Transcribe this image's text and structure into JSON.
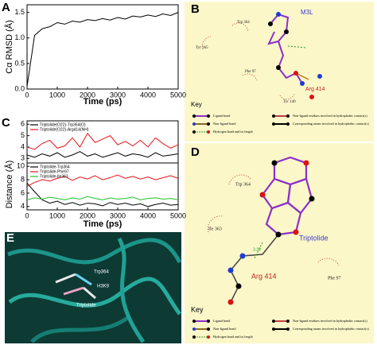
{
  "panel_labels": [
    "A",
    "B",
    "C",
    "D",
    "E"
  ],
  "chart_data": [
    {
      "type": "line",
      "ylabel": "Cα RMSD (Å)",
      "xlabel": "Time (ps)",
      "x": [
        0,
        250,
        500,
        750,
        1000,
        1250,
        1500,
        1750,
        2000,
        2250,
        2500,
        2750,
        3000,
        3250,
        3500,
        3750,
        4000,
        4250,
        4500,
        4750,
        5000
      ],
      "xlim": [
        0,
        5000
      ],
      "ylim": [
        0,
        1.65
      ],
      "xticks": [
        0,
        1000,
        2000,
        3000,
        4000,
        5000
      ],
      "yticks": [
        {
          "value": 0,
          "label": "0.0"
        },
        {
          "value": 0.5,
          "label": "0.5"
        },
        {
          "value": 1,
          "label": "1.0"
        },
        {
          "value": 1.5,
          "label": "1.5"
        }
      ],
      "series": [
        {
          "color": "#000000",
          "values": [
            0.05,
            1.05,
            1.18,
            1.22,
            1.3,
            1.27,
            1.33,
            1.31,
            1.36,
            1.34,
            1.38,
            1.35,
            1.4,
            1.37,
            1.43,
            1.41,
            1.45,
            1.42,
            1.47,
            1.44,
            1.5
          ]
        }
      ]
    },
    {
      "type": "line",
      "ylabel": "Distance (Å)",
      "x": [
        0,
        250,
        500,
        750,
        1000,
        1250,
        1500,
        1750,
        2000,
        2250,
        2500,
        2750,
        3000,
        3250,
        3500,
        3750,
        4000,
        4250,
        4500,
        4750,
        5000
      ],
      "xlim": [
        0,
        5000
      ],
      "ylim": [
        2.6,
        6.3
      ],
      "yticks": [
        3,
        4,
        5,
        6
      ],
      "series": [
        {
          "name": "Triptolide(O22)-Trp364(O)",
          "color": "#000000",
          "values": [
            3.3,
            3.1,
            3.4,
            3.2,
            3.5,
            3.1,
            3.3,
            3.6,
            3.2,
            3.4,
            3.1,
            3.3,
            3.5,
            3.2,
            3.4,
            3.3,
            3.1,
            3.5,
            3.2,
            3.3,
            3.4
          ]
        },
        {
          "name": "Triptolide(O22)-Arg414(NH)",
          "color": "#e8141b",
          "values": [
            4.0,
            3.8,
            4.3,
            4.6,
            3.9,
            4.1,
            4.8,
            4.0,
            5.2,
            4.4,
            4.7,
            5.0,
            4.2,
            4.5,
            4.1,
            4.6,
            4.0,
            4.8,
            4.3,
            3.9,
            4.2
          ]
        }
      ]
    },
    {
      "type": "line",
      "xlabel": "Time (ps)",
      "x": [
        0,
        250,
        500,
        750,
        1000,
        1250,
        1500,
        1750,
        2000,
        2250,
        2500,
        2750,
        3000,
        3250,
        3500,
        3750,
        4000,
        4250,
        4500,
        4750,
        5000
      ],
      "xlim": [
        0,
        5000
      ],
      "ylim": [
        3.5,
        10.5
      ],
      "xticks": [
        0,
        1000,
        2000,
        3000,
        4000,
        5000
      ],
      "yticks": [
        4,
        6,
        8,
        10
      ],
      "series": [
        {
          "name": "Triptolide-Trp364",
          "color": "#000000",
          "values": [
            7.5,
            6.2,
            5.0,
            4.5,
            4.8,
            4.3,
            4.6,
            4.2,
            4.5,
            4.4,
            4.1,
            4.6,
            4.3,
            4.5,
            4.2,
            4.4,
            4.0,
            4.3,
            4.5,
            4.2,
            4.3
          ]
        },
        {
          "name": "Triptolide-Phe97",
          "color": "#e8141b",
          "values": [
            7.0,
            7.6,
            8.0,
            7.8,
            8.2,
            8.5,
            7.9,
            8.4,
            8.1,
            8.6,
            8.0,
            8.3,
            8.7,
            8.2,
            8.5,
            8.1,
            8.4,
            8.0,
            8.3,
            8.6,
            8.2
          ]
        },
        {
          "name": "Triptolide-Ile363",
          "color": "#22c02a",
          "values": [
            5.0,
            5.3,
            5.1,
            5.4,
            5.2,
            5.0,
            5.3,
            5.1,
            5.5,
            5.2,
            5.0,
            5.3,
            5.1,
            5.2,
            5.4,
            5.0,
            5.2,
            5.3,
            5.1,
            5.2,
            5.0
          ]
        }
      ]
    }
  ],
  "diagrams": {
    "B": {
      "ligand": "M3L",
      "residues": [
        "Trp 364",
        "Tyr 365",
        "Phe 97",
        "Arg 414",
        "Tyr 140"
      ],
      "key_title": "Key",
      "key": [
        "Ligand bond",
        "Non-ligand bond",
        "Hydrogen bond and its length",
        "Non-ligand residues involved in hydrophobic contact(s)",
        "Corresponding atoms involved in hydrophobic contact(s)"
      ]
    },
    "D": {
      "ligand": "Triptolide",
      "residues": [
        "Trp 364",
        "Ile 363",
        "Arg 414",
        "Phe 97"
      ],
      "hbond": "3.28",
      "key_title": "Key",
      "key": [
        "Ligand bond",
        "Non-ligand bond",
        "Hydrogen bond and its length",
        "Non-ligand residues involved in hydrophobic contact(s)",
        "Corresponding atoms involved in hydrophobic contact(s)"
      ]
    },
    "E": {
      "labels": [
        "Trp364",
        "H3K9",
        "Triptolide"
      ]
    }
  }
}
